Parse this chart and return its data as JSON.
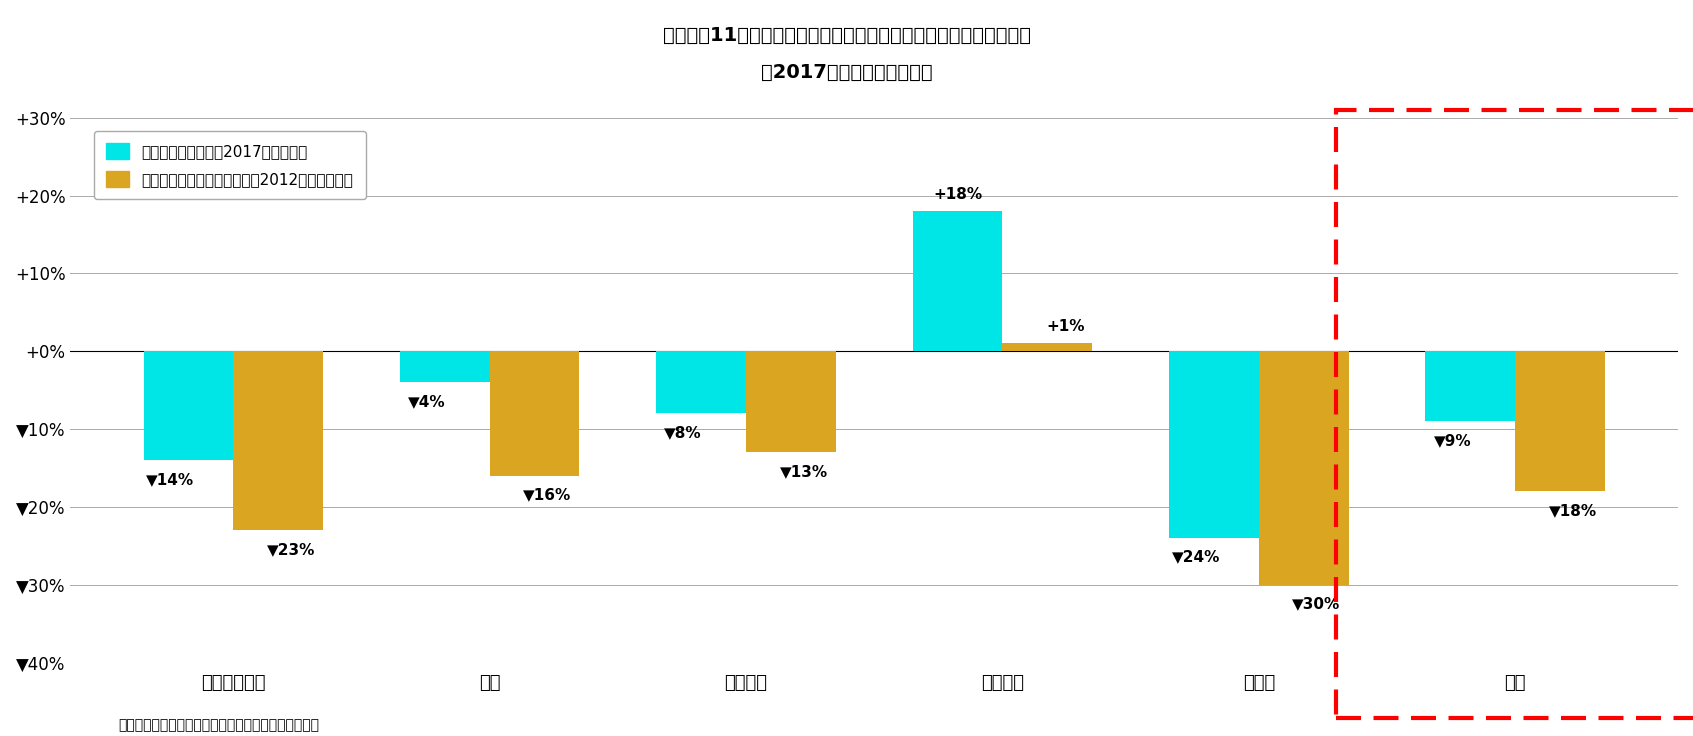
{
  "title_line1": "［図表－11］：取得価額に対するキャピタル収益率（年率換算前）",
  "title_line2": "（2017年末時点とボトム）",
  "categories": [
    "オフィスビル",
    "住宅",
    "商業施設",
    "物流施設",
    "ホテル",
    "全体"
  ],
  "cyan_values": [
    -14,
    -4,
    -8,
    18,
    -24,
    -9
  ],
  "gold_values": [
    -23,
    -16,
    -13,
    1,
    -30,
    -18
  ],
  "cyan_labels": [
    "▼14%",
    "▼4%",
    "▼8%",
    "+18%",
    "▼24%",
    "▼9%"
  ],
  "gold_labels": [
    "▼23%",
    "▼16%",
    "▼13%",
    "+1%",
    "▼30%",
    "▼18%"
  ],
  "cyan_color": "#00E5E5",
  "gold_color": "#DAA520",
  "ylim_min": -40,
  "ylim_max": 30,
  "yticks": [
    -40,
    -30,
    -20,
    -10,
    0,
    10,
    20,
    30
  ],
  "ytick_labels": [
    "▼40%",
    "▼30%",
    "▼20%",
    "▼10%",
    "+0%",
    "+10%",
    "+20%",
    "+30%"
  ],
  "legend_label_cyan": "キャピタル収益率ﾈ2017年末時点）",
  "legend_label_gold": "キャピタル収益率（ボトム、2012年下期時点）",
  "footnote": "（出所）開示資料をもとにニッセイ基礎研究所が作成",
  "background_color": "#FFFFFF",
  "bar_width": 0.35
}
